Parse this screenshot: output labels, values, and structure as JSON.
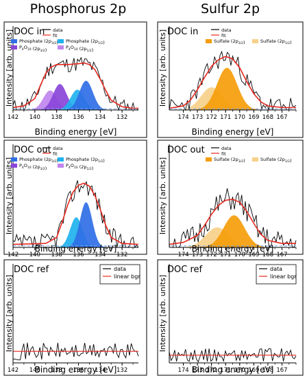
{
  "titles": {
    "left": "Phosphorus 2p",
    "right": "Sulfur 2p"
  },
  "colors": {
    "data": "#000000",
    "fit": "#e8271e",
    "p_phosphate_32": "#2f6fe6",
    "p_phosphate_12": "#1fb2ee",
    "p_p4o10_32": "#8a45d9",
    "p_p4o10_12": "#bf86ee",
    "s_sulfate_32": "#f59d0a",
    "s_sulfate_12": "#f7d08a",
    "linear_bgr": "#e8271e"
  },
  "chart_data": [
    {
      "type": "line",
      "panel": "P-DOC-in",
      "annotation": "DOC in",
      "xlabel": "Binding energy [eV]",
      "ylabel": "Intensity [arb. units]",
      "xlim": [
        142,
        130.5
      ],
      "ylim": [
        0,
        1.0
      ],
      "xticks": [
        142,
        140,
        138,
        136,
        134,
        132
      ],
      "legend": [
        "data",
        "fit",
        "Phosphate (2p3/2)",
        "Phosphate (2p1/2)",
        "P4O10 (2p3/2)",
        "P4O10 (2p1/2)"
      ],
      "fit": [
        [
          142,
          0.03
        ],
        [
          141,
          0.05
        ],
        [
          140,
          0.14
        ],
        [
          139.5,
          0.3
        ],
        [
          139,
          0.45
        ],
        [
          138.5,
          0.53
        ],
        [
          138,
          0.56
        ],
        [
          137,
          0.56
        ],
        [
          136,
          0.57
        ],
        [
          135.5,
          0.58
        ],
        [
          135,
          0.56
        ],
        [
          134.5,
          0.5
        ],
        [
          134,
          0.38
        ],
        [
          133.5,
          0.24
        ],
        [
          133,
          0.12
        ],
        [
          132,
          0.04
        ],
        [
          131,
          0.02
        ],
        [
          130.5,
          0.02
        ]
      ],
      "components": [
        {
          "name": "P4O10 (2p1/2)",
          "color_key": "p_p4o10_12",
          "center": 138.6,
          "height": 0.24,
          "width": 1.0
        },
        {
          "name": "P4O10 (2p3/2)",
          "color_key": "p_p4o10_32",
          "center": 137.7,
          "height": 0.32,
          "width": 1.0
        },
        {
          "name": "Phosphate (2p1/2)",
          "color_key": "p_phosphate_12",
          "center": 136.1,
          "height": 0.25,
          "width": 1.0
        },
        {
          "name": "Phosphate (2p3/2)",
          "color_key": "p_phosphate_32",
          "center": 135.3,
          "height": 0.36,
          "width": 1.0
        }
      ],
      "data_seed": 11,
      "data_noise": 0.1
    },
    {
      "type": "line",
      "panel": "S-DOC-in",
      "annotation": "DOC in",
      "xlabel": "Binding energy [eV]",
      "ylabel": "Intensity [arb. units]",
      "xlim": [
        175,
        166
      ],
      "ylim": [
        0,
        1.0
      ],
      "xticks": [
        174,
        173,
        172,
        171,
        170,
        169,
        168,
        167
      ],
      "legend": [
        "data",
        "fit",
        "Sulfate (2p3/2)",
        "Sulfate (2p1/2)"
      ],
      "fit": [
        [
          175,
          0.02
        ],
        [
          174,
          0.05
        ],
        [
          173.5,
          0.12
        ],
        [
          173,
          0.25
        ],
        [
          172.5,
          0.4
        ],
        [
          172,
          0.54
        ],
        [
          171.5,
          0.62
        ],
        [
          171,
          0.66
        ],
        [
          170.5,
          0.63
        ],
        [
          170,
          0.52
        ],
        [
          169.5,
          0.35
        ],
        [
          169,
          0.2
        ],
        [
          168.5,
          0.1
        ],
        [
          168,
          0.05
        ],
        [
          167,
          0.03
        ],
        [
          166,
          0.03
        ]
      ],
      "components": [
        {
          "name": "Sulfate (2p1/2)",
          "color_key": "s_sulfate_12",
          "center": 172.0,
          "height": 0.28,
          "width": 1.2
        },
        {
          "name": "Sulfate (2p3/2)",
          "color_key": "s_sulfate_32",
          "center": 170.9,
          "height": 0.52,
          "width": 1.15
        }
      ],
      "data_seed": 23,
      "data_noise": 0.12
    },
    {
      "type": "line",
      "panel": "P-DOC-out",
      "annotation": "DOC out",
      "xlabel": "Binding energy [eV]",
      "ylabel": "Intensity [arb. units]",
      "xlim": [
        142,
        130.5
      ],
      "ylim": [
        0,
        1.0
      ],
      "xticks": [
        142,
        140,
        138,
        136,
        134,
        132
      ],
      "legend": [
        "data",
        "fit",
        "Phosphate (2p3/2)",
        "Phosphate (2p1/2)",
        "P4O10 (2p3/2)",
        "P4O10 (2p1/2)"
      ],
      "fit": [
        [
          142,
          0.03
        ],
        [
          139,
          0.04
        ],
        [
          138,
          0.1
        ],
        [
          137.5,
          0.25
        ],
        [
          137,
          0.42
        ],
        [
          136.5,
          0.55
        ],
        [
          136,
          0.62
        ],
        [
          135.5,
          0.64
        ],
        [
          135,
          0.61
        ],
        [
          134.5,
          0.52
        ],
        [
          134,
          0.38
        ],
        [
          133.5,
          0.22
        ],
        [
          133,
          0.1
        ],
        [
          132,
          0.04
        ],
        [
          130.5,
          0.03
        ]
      ],
      "components": [
        {
          "name": "Phosphate (2p1/2)",
          "color_key": "p_phosphate_12",
          "center": 136.2,
          "height": 0.3,
          "width": 0.9
        },
        {
          "name": "Phosphate (2p3/2)",
          "color_key": "p_phosphate_32",
          "center": 135.3,
          "height": 0.45,
          "width": 0.9
        }
      ],
      "data_seed": 37,
      "data_noise": 0.1
    },
    {
      "type": "line",
      "panel": "S-DOC-out",
      "annotation": "DOC out",
      "xlabel": "Binding energy [eV]",
      "ylabel": "Intensity [arb. units]",
      "xlim": [
        175,
        166
      ],
      "ylim": [
        0,
        1.0
      ],
      "xticks": [
        174,
        173,
        172,
        171,
        170,
        169,
        168,
        167
      ],
      "legend": [
        "data",
        "fit",
        "Sulfate (2p3/2)",
        "Sulfate (2p1/2)"
      ],
      "fit": [
        [
          175,
          0.03
        ],
        [
          174,
          0.05
        ],
        [
          173,
          0.12
        ],
        [
          172.5,
          0.22
        ],
        [
          172,
          0.33
        ],
        [
          171.5,
          0.42
        ],
        [
          171,
          0.47
        ],
        [
          170.5,
          0.48
        ],
        [
          170,
          0.45
        ],
        [
          169.5,
          0.36
        ],
        [
          169,
          0.24
        ],
        [
          168.5,
          0.13
        ],
        [
          168,
          0.07
        ],
        [
          167,
          0.04
        ],
        [
          166,
          0.04
        ]
      ],
      "components": [
        {
          "name": "Sulfate (2p1/2)",
          "color_key": "s_sulfate_12",
          "center": 171.6,
          "height": 0.2,
          "width": 1.3
        },
        {
          "name": "Sulfate (2p3/2)",
          "color_key": "s_sulfate_32",
          "center": 170.4,
          "height": 0.32,
          "width": 1.2
        }
      ],
      "data_seed": 51,
      "data_noise": 0.12
    },
    {
      "type": "line",
      "panel": "P-DOC-ref",
      "annotation": "DOC ref",
      "xlabel": "Binding energy [eV]",
      "ylabel": "Intensity [arb. units]",
      "xlim": [
        142,
        130.5
      ],
      "ylim": [
        0,
        1.0
      ],
      "xticks": [
        142,
        140,
        138,
        136,
        134,
        132
      ],
      "legend": [
        "data",
        "linear bgr"
      ],
      "baseline": 0.12,
      "components": [],
      "data_seed": 71,
      "data_noise": 0.09
    },
    {
      "type": "line",
      "panel": "S-DOC-ref",
      "annotation": "DOC ref",
      "xlabel": "Binding energy [eV]",
      "ylabel": "Intensity [arb. units]",
      "xlim": [
        175,
        166
      ],
      "ylim": [
        0,
        1.0
      ],
      "xticks": [
        174,
        173,
        172,
        171,
        170,
        169,
        168,
        167
      ],
      "legend": [
        "data",
        "linear bgr"
      ],
      "baseline": 0.08,
      "components": [],
      "data_seed": 89,
      "data_noise": 0.07
    }
  ]
}
